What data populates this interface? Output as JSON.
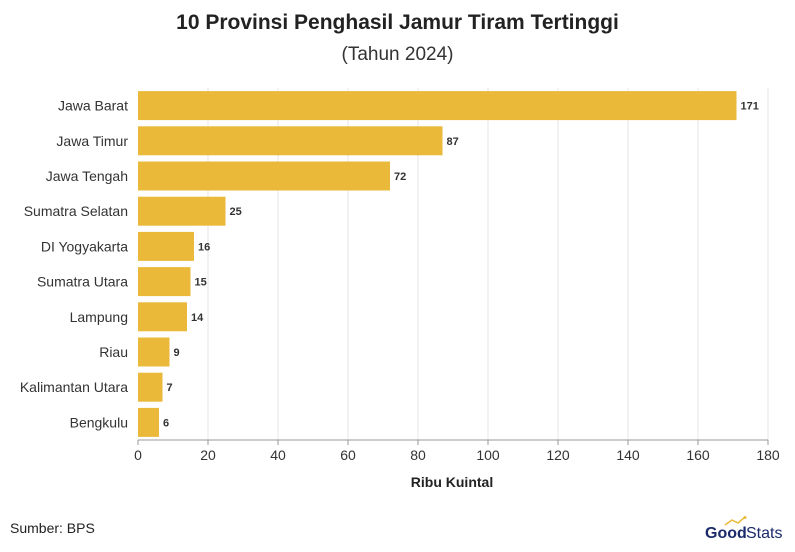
{
  "chart_data": {
    "type": "bar",
    "orientation": "horizontal",
    "title": "10 Provinsi Penghasil Jamur Tiram Tertinggi",
    "subtitle": "(Tahun 2024)",
    "xlabel": "Ribu Kuintal",
    "ylabel": "",
    "categories": [
      "Jawa Barat",
      "Jawa Timur",
      "Jawa Tengah",
      "Sumatra Selatan",
      "DI Yogyakarta",
      "Sumatra Utara",
      "Lampung",
      "Riau",
      "Kalimantan Utara",
      "Bengkulu"
    ],
    "values": [
      171,
      87,
      72,
      25,
      16,
      15,
      14,
      9,
      7,
      6
    ],
    "value_labels": [
      "171",
      "87",
      "72",
      "25",
      "16",
      "15",
      "14",
      "9",
      "7",
      "6"
    ],
    "xlim": [
      0,
      180
    ],
    "xticks": [
      0,
      20,
      40,
      60,
      80,
      100,
      120,
      140,
      160,
      180
    ],
    "xtick_labels": [
      "0",
      "20",
      "40",
      "60",
      "80",
      "100",
      "120",
      "140",
      "160",
      "180"
    ],
    "grid": true,
    "bar_color": "#ebb93a"
  },
  "footer": {
    "source": "Sumber: BPS",
    "logo_good": "Good",
    "logo_stats": "Stats"
  }
}
